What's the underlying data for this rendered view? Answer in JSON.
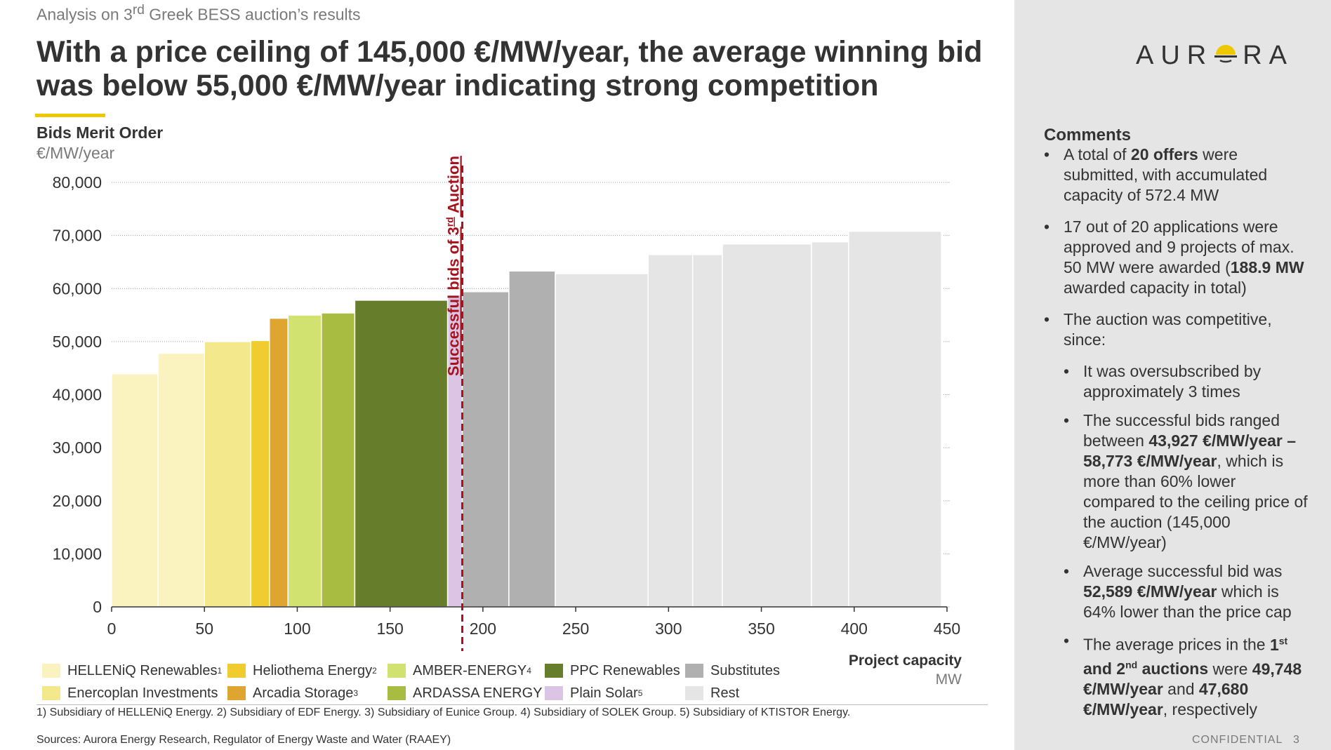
{
  "supertitle": {
    "prefix": "Analysis on 3",
    "sup": "rd",
    "suffix": " Greek BESS auction’s results"
  },
  "title": "With a price ceiling of 145,000 €/MW/year, the average winning bid was below 55,000 €/MW/year indicating strong competition",
  "logo": {
    "before": "AUR",
    "after": "RA"
  },
  "chart_data": {
    "type": "bar",
    "subtype": "merit-order step chart",
    "title": "Bids Merit Order",
    "ylabel": "€/MW/year",
    "xlabel": "Project capacity",
    "xunit": "MW",
    "ylim": [
      0,
      80000
    ],
    "xlim": [
      0,
      450
    ],
    "yticks": [
      "0",
      "10,000",
      "20,000",
      "30,000",
      "40,000",
      "50,000",
      "60,000",
      "70,000",
      "80,000"
    ],
    "xticks": [
      "0",
      "50",
      "100",
      "150",
      "200",
      "250",
      "300",
      "350",
      "400",
      "450"
    ],
    "grid": "horizontal dotted",
    "cutoff_line": {
      "x": 188.9,
      "label_prefix": "Successful bids of 3",
      "label_sup": "rd",
      "label_suffix": " Auction"
    },
    "bars": [
      {
        "group": "HELLENiQ Renewables",
        "x0": 0,
        "x1": 25,
        "value": 43927
      },
      {
        "group": "HELLENiQ Renewables",
        "x0": 25,
        "x1": 50,
        "value": 47800
      },
      {
        "group": "Enercoplan Investments",
        "x0": 50,
        "x1": 75,
        "value": 50000
      },
      {
        "group": "Heliothema Energy",
        "x0": 75,
        "x1": 85,
        "value": 50200
      },
      {
        "group": "Arcadia Storage",
        "x0": 85,
        "x1": 95,
        "value": 54400
      },
      {
        "group": "AMBER-ENERGY",
        "x0": 95,
        "x1": 113,
        "value": 55000
      },
      {
        "group": "ARDASSA ENERGY",
        "x0": 113,
        "x1": 131,
        "value": 55400
      },
      {
        "group": "PPC Renewables",
        "x0": 131,
        "x1": 181,
        "value": 57800
      },
      {
        "group": "Plain Solar",
        "x0": 181,
        "x1": 188.9,
        "value": 58773
      },
      {
        "group": "Substitutes",
        "x0": 188.9,
        "x1": 214,
        "value": 59400
      },
      {
        "group": "Substitutes",
        "x0": 214,
        "x1": 239,
        "value": 63300
      },
      {
        "group": "Rest",
        "x0": 239,
        "x1": 289,
        "value": 62800
      },
      {
        "group": "Rest",
        "x0": 289,
        "x1": 313,
        "value": 66400
      },
      {
        "group": "Rest",
        "x0": 313,
        "x1": 329,
        "value": 66400
      },
      {
        "group": "Rest",
        "x0": 329,
        "x1": 377,
        "value": 68400
      },
      {
        "group": "Rest",
        "x0": 377,
        "x1": 397,
        "value": 68800
      },
      {
        "group": "Rest",
        "x0": 397,
        "x1": 447,
        "value": 70800
      }
    ],
    "legend": [
      {
        "name": "HELLENiQ Renewables",
        "sup": "1",
        "color": "#faf3c0"
      },
      {
        "name": "Heliothema Energy",
        "sup": "2",
        "color": "#f0cc30"
      },
      {
        "name": "AMBER-ENERGY",
        "sup": "4",
        "color": "#d2e270"
      },
      {
        "name": "PPC Renewables",
        "sup": "",
        "color": "#667d2c"
      },
      {
        "name": "Substitutes",
        "sup": "",
        "color": "#b0b0b0"
      },
      {
        "name": "Enercoplan Investments",
        "sup": "",
        "color": "#f4e88c"
      },
      {
        "name": "Arcadia Storage",
        "sup": "3",
        "color": "#dea530"
      },
      {
        "name": "ARDASSA ENERGY",
        "sup": "",
        "color": "#a8bc42"
      },
      {
        "name": "Plain Solar",
        "sup": "5",
        "color": "#dcc4e4"
      },
      {
        "name": "Rest",
        "sup": "",
        "color": "#e5e5e5"
      }
    ]
  },
  "footnote": "1) Subsidiary of HELLENiQ Energy. 2) Subsidiary of EDF Energy. 3) Subsidiary of Eunice Group. 4) Subsidiary of SOLEK Group. 5) Subsidiary of KTISTOR Energy.",
  "sources": "Sources: Aurora Energy Research, Regulator of Energy Waste and Water (RAAEY)",
  "comments": {
    "title": "Comments",
    "item1": {
      "a": "A total of ",
      "b": "20 offers",
      "c": " were submitted, with accumulated capacity of 572.4 MW"
    },
    "item2": {
      "a": "17 out of 20 applications were approved and 9 projects of max. 50 MW were awarded (",
      "b": "188.9 MW",
      "c": " awarded capacity in total)"
    },
    "item3": "The auction was competitive, since:",
    "sub1": "It was oversubscribed by approximately 3 times",
    "sub2": {
      "a": "The successful bids ranged between ",
      "b": "43,927 €/MW/year – 58,773 €/MW/year",
      "c": ", which is more than 60% lower compared to the ceiling price of the auction  (145,000 €/MW/year)"
    },
    "sub3": {
      "a": "Average successful bid was ",
      "b": "52,589 €/MW/year",
      "c": " which is 64% lower than the price cap"
    },
    "sub4": {
      "a": "The average prices in the ",
      "b1": "1",
      "sup1": "st",
      "b2": " and 2",
      "sup2": "nd",
      "b3": " auctions",
      "c": " were ",
      "d": "49,748 €/MW/year",
      "e": " and ",
      "f": "47,680 €/MW/year",
      "g": ", respectively"
    }
  },
  "confidential": "CONFIDENTIAL",
  "page_number": "3",
  "colors": {
    "accent": "#f0c800",
    "cutoff": "#a3141e",
    "sidebar": "#e5e5e5"
  }
}
